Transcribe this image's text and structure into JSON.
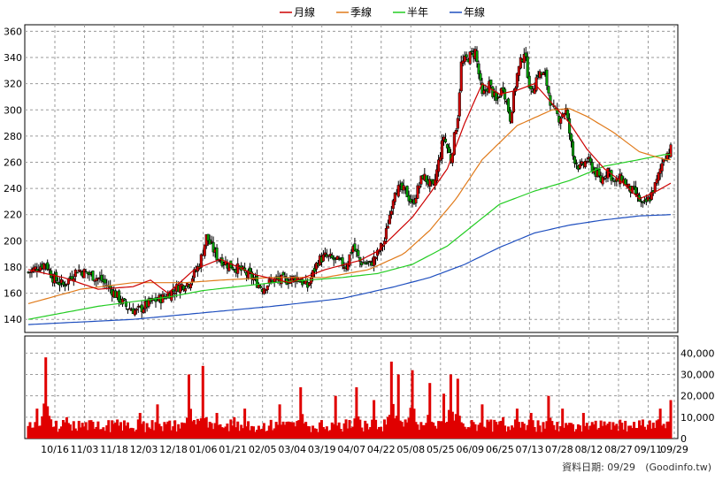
{
  "chart_data": {
    "type": "candlestick",
    "legend": [
      {
        "name": "月線",
        "color": "#cc0000"
      },
      {
        "name": "季線",
        "color": "#e07a1a"
      },
      {
        "name": "半年",
        "color": "#22cc22"
      },
      {
        "name": "年線",
        "color": "#1f4fbf"
      }
    ],
    "price_axis": {
      "ylim": [
        130,
        365
      ],
      "ticks": [
        140,
        160,
        180,
        200,
        220,
        240,
        260,
        280,
        300,
        320,
        340,
        360
      ]
    },
    "volume_axis": {
      "ylim": [
        0,
        48000
      ],
      "ticks": [
        "0",
        "10,000",
        "20,000",
        "30,000",
        "40,000"
      ],
      "tick_values": [
        0,
        10000,
        20000,
        30000,
        40000
      ]
    },
    "x_tick_labels": [
      "10/16",
      "11/03",
      "11/18",
      "12/03",
      "12/18",
      "01/06",
      "01/21",
      "02/05",
      "03/04",
      "03/19",
      "04/07",
      "04/22",
      "05/08",
      "05/25",
      "06/09",
      "06/25",
      "07/13",
      "07/28",
      "08/12",
      "08/27",
      "09/11",
      "09/29"
    ],
    "n_bars": 245,
    "close_keypoints": [
      [
        0,
        176
      ],
      [
        10,
        183
      ],
      [
        14,
        172
      ],
      [
        20,
        166
      ],
      [
        28,
        178
      ],
      [
        34,
        175
      ],
      [
        42,
        170
      ],
      [
        48,
        162
      ],
      [
        56,
        150
      ],
      [
        62,
        146
      ],
      [
        70,
        153
      ],
      [
        78,
        157
      ],
      [
        86,
        165
      ],
      [
        92,
        168
      ],
      [
        98,
        182
      ],
      [
        102,
        203
      ],
      [
        108,
        188
      ],
      [
        114,
        182
      ],
      [
        120,
        179
      ],
      [
        128,
        172
      ],
      [
        134,
        164
      ],
      [
        140,
        170
      ],
      [
        148,
        170
      ],
      [
        154,
        172
      ],
      [
        160,
        165
      ],
      [
        166,
        185
      ],
      [
        170,
        188
      ],
      [
        176,
        185
      ],
      [
        182,
        181
      ],
      [
        186,
        196
      ],
      [
        190,
        184
      ],
      [
        196,
        182
      ],
      [
        200,
        190
      ],
      [
        204,
        200
      ],
      [
        210,
        240
      ],
      [
        216,
        238
      ],
      [
        220,
        228
      ],
      [
        226,
        250
      ],
      [
        232,
        240
      ],
      [
        238,
        280
      ],
      [
        242,
        262
      ],
      [
        246,
        296
      ],
      [
        248,
        335
      ],
      [
        252,
        340
      ],
      [
        256,
        345
      ],
      [
        260,
        310
      ],
      [
        264,
        320
      ],
      [
        268,
        306
      ],
      [
        272,
        318
      ],
      [
        276,
        294
      ],
      [
        280,
        327
      ],
      [
        284,
        345
      ],
      [
        288,
        312
      ],
      [
        292,
        328
      ],
      [
        296,
        326
      ],
      [
        300,
        301
      ],
      [
        304,
        294
      ],
      [
        308,
        300
      ],
      [
        312,
        265
      ],
      [
        316,
        255
      ],
      [
        320,
        262
      ],
      [
        324,
        254
      ],
      [
        328,
        246
      ],
      [
        332,
        255
      ],
      [
        336,
        244
      ],
      [
        340,
        248
      ],
      [
        344,
        240
      ],
      [
        348,
        236
      ],
      [
        352,
        226
      ],
      [
        356,
        233
      ],
      [
        360,
        245
      ],
      [
        364,
        264
      ],
      [
        368,
        270
      ]
    ],
    "ma_month": [
      [
        0,
        178
      ],
      [
        20,
        172
      ],
      [
        40,
        163
      ],
      [
        60,
        165
      ],
      [
        70,
        170
      ],
      [
        80,
        160
      ],
      [
        95,
        178
      ],
      [
        110,
        186
      ],
      [
        130,
        174
      ],
      [
        150,
        168
      ],
      [
        170,
        178
      ],
      [
        190,
        185
      ],
      [
        200,
        192
      ],
      [
        210,
        205
      ],
      [
        220,
        218
      ],
      [
        230,
        236
      ],
      [
        240,
        255
      ],
      [
        250,
        290
      ],
      [
        260,
        320
      ],
      [
        270,
        312
      ],
      [
        280,
        315
      ],
      [
        290,
        320
      ],
      [
        300,
        305
      ],
      [
        310,
        290
      ],
      [
        320,
        270
      ],
      [
        330,
        255
      ],
      [
        340,
        245
      ],
      [
        350,
        232
      ],
      [
        360,
        238
      ],
      [
        368,
        244
      ]
    ],
    "ma_quarter": [
      [
        0,
        152
      ],
      [
        30,
        163
      ],
      [
        60,
        168
      ],
      [
        90,
        168
      ],
      [
        110,
        170
      ],
      [
        140,
        172
      ],
      [
        170,
        172
      ],
      [
        195,
        178
      ],
      [
        215,
        190
      ],
      [
        230,
        208
      ],
      [
        245,
        232
      ],
      [
        260,
        262
      ],
      [
        280,
        288
      ],
      [
        300,
        300
      ],
      [
        310,
        301
      ],
      [
        320,
        295
      ],
      [
        335,
        283
      ],
      [
        350,
        268
      ],
      [
        365,
        262
      ]
    ],
    "ma_half": [
      [
        0,
        140
      ],
      [
        40,
        150
      ],
      [
        80,
        157
      ],
      [
        100,
        162
      ],
      [
        140,
        168
      ],
      [
        180,
        172
      ],
      [
        200,
        175
      ],
      [
        220,
        182
      ],
      [
        240,
        196
      ],
      [
        255,
        212
      ],
      [
        270,
        228
      ],
      [
        290,
        238
      ],
      [
        310,
        246
      ],
      [
        330,
        257
      ],
      [
        350,
        262
      ],
      [
        365,
        266
      ]
    ],
    "ma_year": [
      [
        0,
        136
      ],
      [
        60,
        140
      ],
      [
        100,
        145
      ],
      [
        140,
        150
      ],
      [
        180,
        156
      ],
      [
        210,
        165
      ],
      [
        230,
        172
      ],
      [
        250,
        182
      ],
      [
        270,
        195
      ],
      [
        290,
        206
      ],
      [
        310,
        212
      ],
      [
        330,
        216
      ],
      [
        350,
        219
      ],
      [
        368,
        220
      ]
    ],
    "volume_spikes": [
      [
        5,
        14000
      ],
      [
        10,
        38000
      ],
      [
        22,
        10000
      ],
      [
        40,
        8000
      ],
      [
        64,
        12000
      ],
      [
        74,
        16000
      ],
      [
        92,
        30000
      ],
      [
        100,
        34000
      ],
      [
        108,
        12000
      ],
      [
        118,
        10000
      ],
      [
        124,
        14000
      ],
      [
        144,
        16000
      ],
      [
        156,
        24000
      ],
      [
        176,
        20000
      ],
      [
        188,
        24000
      ],
      [
        198,
        18000
      ],
      [
        208,
        36000
      ],
      [
        212,
        30000
      ],
      [
        220,
        32000
      ],
      [
        230,
        26000
      ],
      [
        238,
        21000
      ],
      [
        242,
        30000
      ],
      [
        246,
        28000
      ],
      [
        260,
        16000
      ],
      [
        272,
        10000
      ],
      [
        280,
        14000
      ],
      [
        288,
        12000
      ],
      [
        298,
        20000
      ],
      [
        306,
        14000
      ],
      [
        318,
        12000
      ],
      [
        330,
        8000
      ],
      [
        344,
        6000
      ],
      [
        356,
        8000
      ],
      [
        362,
        14000
      ],
      [
        368,
        18000
      ]
    ],
    "footer": "資料日期: 09/29",
    "source": "(Goodinfo.tw)"
  }
}
